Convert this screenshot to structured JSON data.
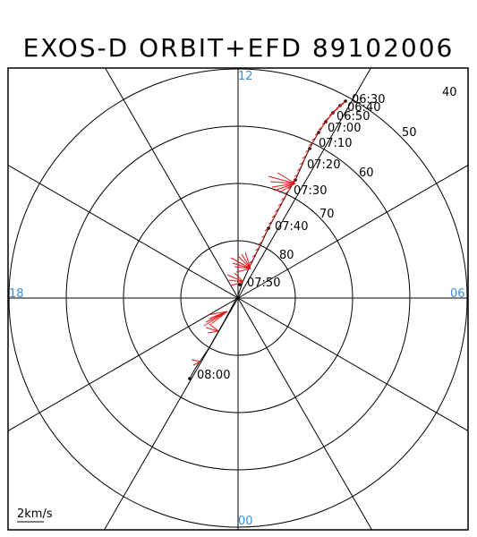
{
  "title": "EXOS-D ORBIT+EFD 89102006",
  "colors": {
    "frame": "#000000",
    "grid": "#000000",
    "hour_label": "#3b8fd6",
    "orbit": "#000000",
    "efd": "#e01818"
  },
  "plot": {
    "hour_labels": {
      "top": "12",
      "bottom": "00",
      "left": "18",
      "right": "06"
    },
    "latitude_labels": [
      "40",
      "50",
      "60",
      "70",
      "80"
    ],
    "time_labels": [
      "06:30",
      "06:40",
      "06:50",
      "07:00",
      "07:10",
      "07:20",
      "07:30",
      "07:40",
      "07:50",
      "08:00"
    ],
    "scale_label": "2km/s"
  }
}
